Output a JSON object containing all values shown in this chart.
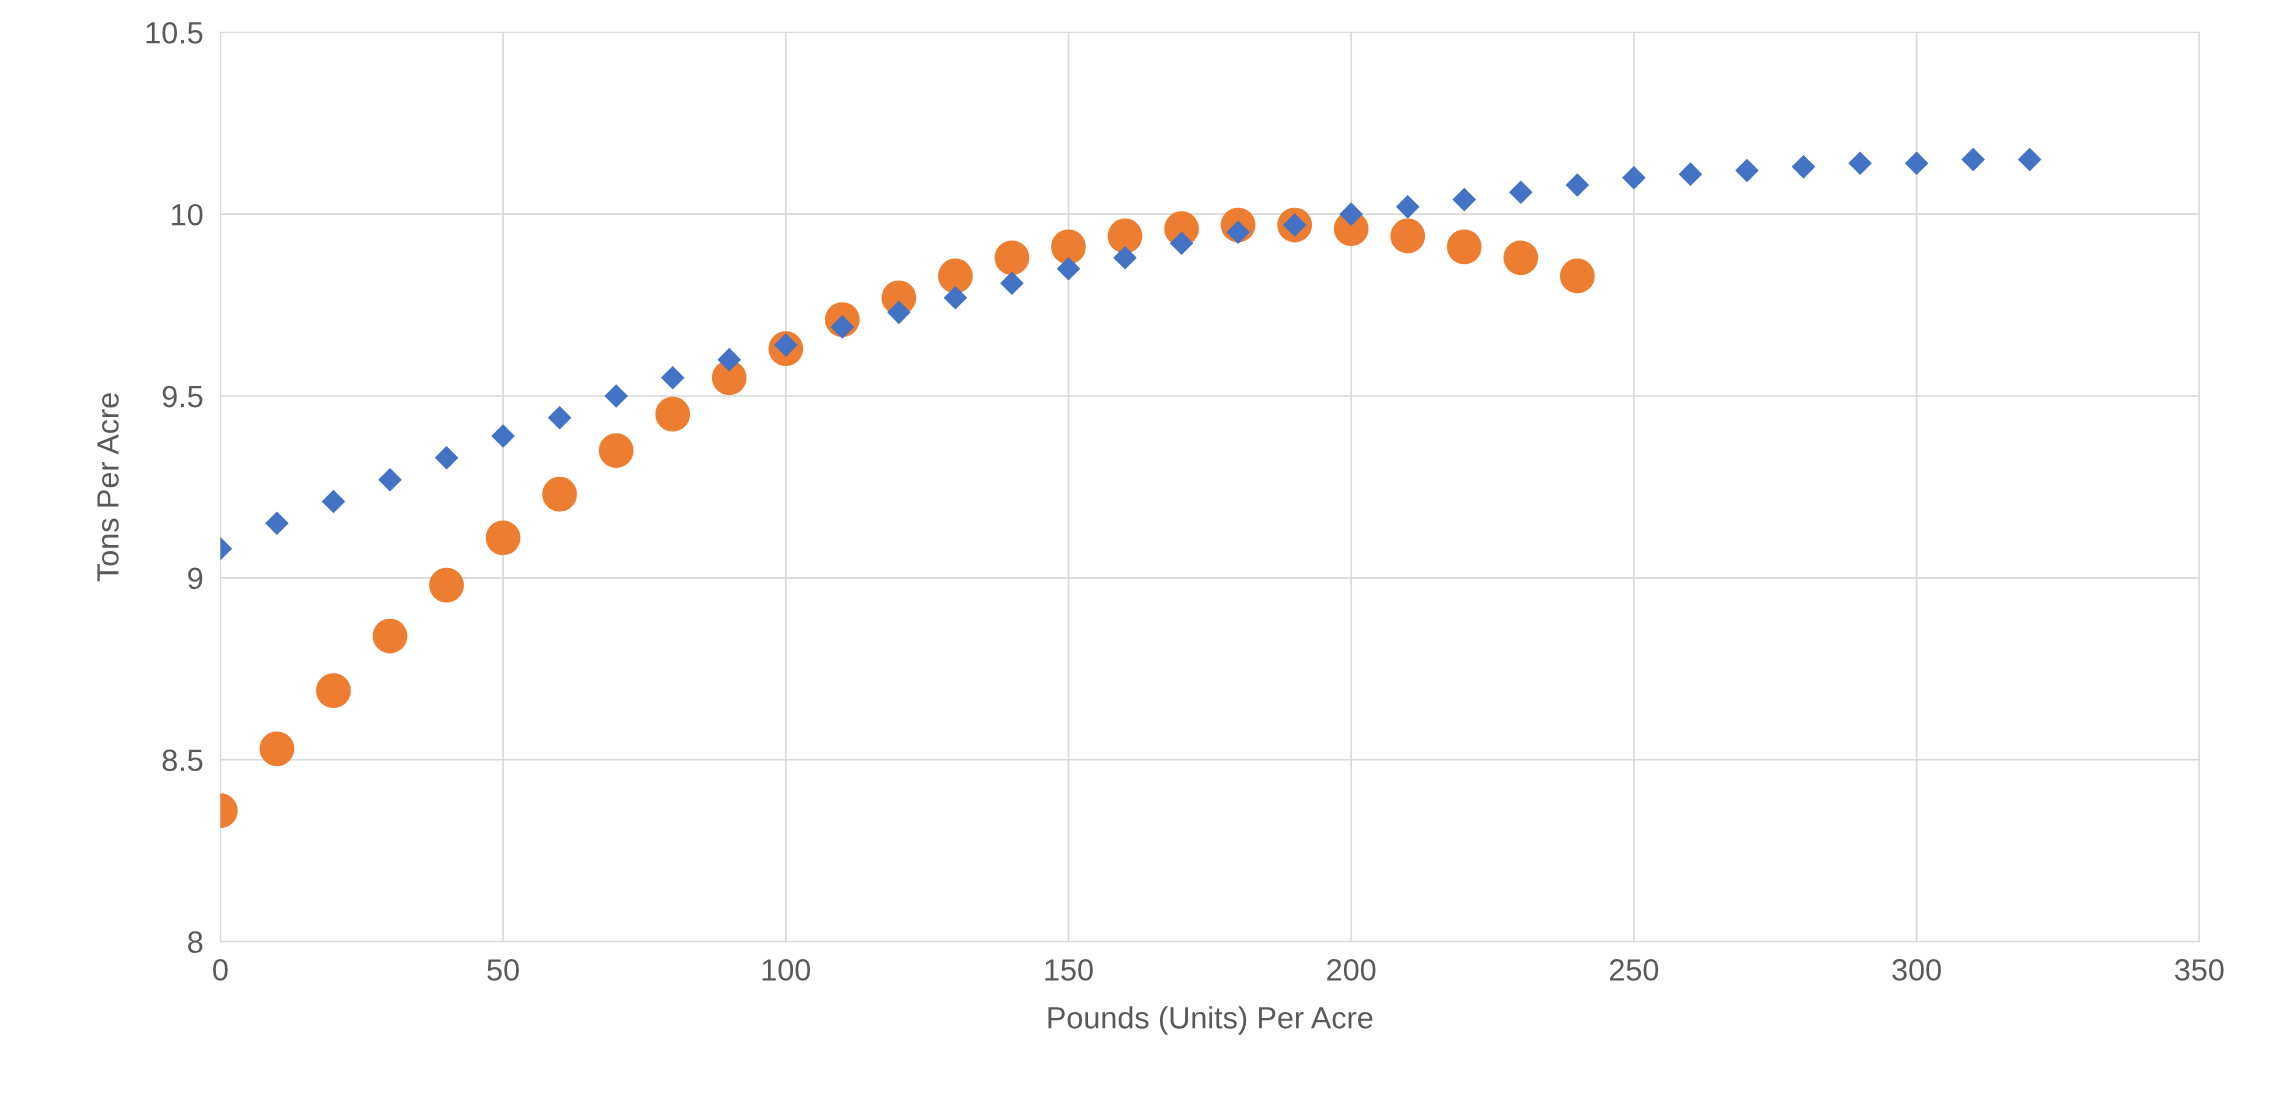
{
  "chart_data": {
    "type": "scatter",
    "xlabel": "Pounds (Units) Per Acre",
    "ylabel": "Tons Per Acre",
    "xlim": [
      0,
      350
    ],
    "xticks": [
      0,
      50,
      100,
      150,
      200,
      250,
      300,
      350
    ],
    "ylim": [
      8,
      10.5
    ],
    "yticks": [
      8,
      8.5,
      9,
      9.5,
      10,
      10.5
    ],
    "grid": true,
    "legend": false,
    "series": [
      {
        "color": "#4472c4",
        "marker": "diamond",
        "x": [
          0,
          10,
          20,
          30,
          40,
          50,
          60,
          70,
          80,
          90,
          100,
          110,
          120,
          130,
          140,
          150,
          160,
          170,
          180,
          190,
          200,
          210,
          220,
          230,
          240,
          250,
          260,
          270,
          280,
          290,
          300,
          310,
          320
        ],
        "values": [
          9.08,
          9.15,
          9.21,
          9.27,
          9.33,
          9.39,
          9.44,
          9.5,
          9.55,
          9.6,
          9.64,
          9.69,
          9.73,
          9.77,
          9.81,
          9.85,
          9.88,
          9.92,
          9.95,
          9.97,
          10.0,
          10.02,
          10.04,
          10.06,
          10.08,
          10.1,
          10.11,
          10.12,
          10.13,
          10.14,
          10.14,
          10.15,
          10.15
        ]
      },
      {
        "color": "#ed7d31",
        "marker": "circle",
        "x": [
          0,
          10,
          20,
          30,
          40,
          50,
          60,
          70,
          80,
          90,
          100,
          110,
          120,
          130,
          140,
          150,
          160,
          170,
          180,
          190,
          200,
          210,
          220,
          230,
          240
        ],
        "values": [
          8.36,
          8.53,
          8.69,
          8.84,
          8.98,
          9.11,
          9.23,
          9.35,
          9.45,
          9.55,
          9.63,
          9.71,
          9.77,
          9.83,
          9.88,
          9.91,
          9.94,
          9.96,
          9.97,
          9.97,
          9.96,
          9.94,
          9.91,
          9.88,
          9.83
        ]
      }
    ]
  }
}
